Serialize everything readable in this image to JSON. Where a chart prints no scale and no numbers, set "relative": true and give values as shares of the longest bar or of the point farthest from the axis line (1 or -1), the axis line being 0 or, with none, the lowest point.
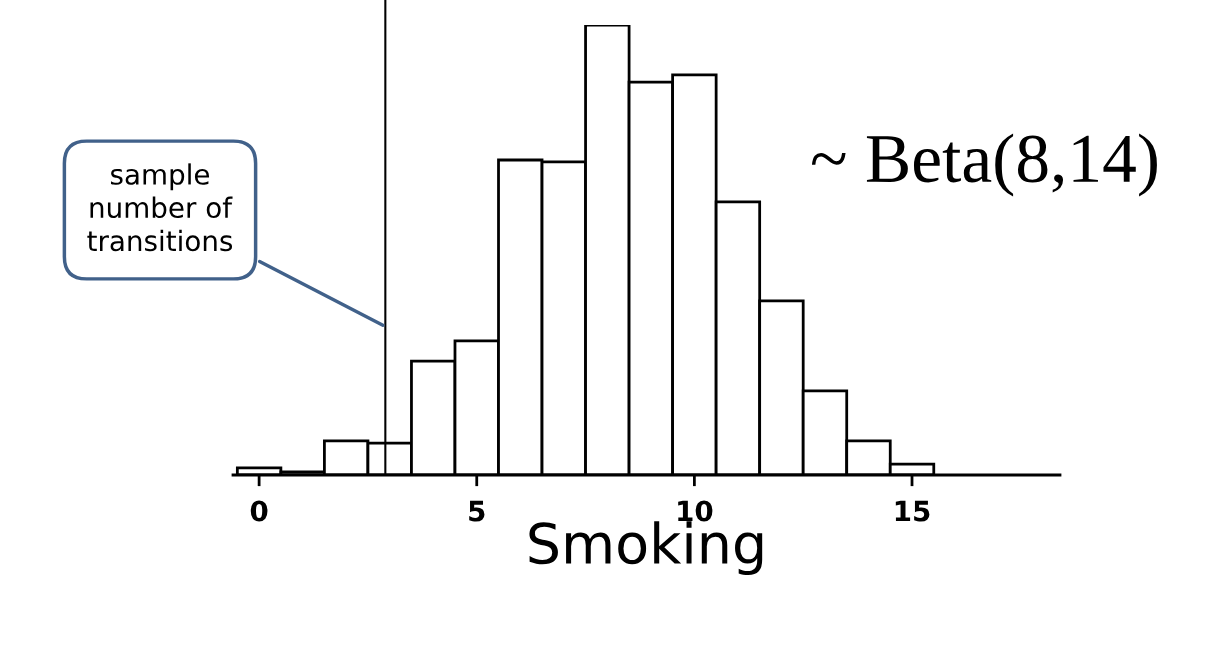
{
  "chart_data": {
    "type": "bar",
    "relative": true,
    "xlabel": "Smoking",
    "x": [
      0,
      1,
      2,
      3,
      4,
      5,
      6,
      7,
      8,
      9,
      10,
      11,
      12,
      13,
      14,
      15
    ],
    "values": [
      0.016,
      0.007,
      0.076,
      0.071,
      0.253,
      0.298,
      0.7,
      0.696,
      1,
      0.873,
      0.889,
      0.607,
      0.387,
      0.187,
      0.076,
      0.024
    ],
    "color": "#ffffff",
    "xlim": [
      -0.6,
      18.4
    ],
    "xticks": [
      0,
      5,
      10,
      15
    ],
    "ref_lines": [
      {
        "axis": "x",
        "value": 2.9,
        "color": "#000000"
      }
    ],
    "annotations": [
      {
        "text": "sample\nnumber of\ntransitions",
        "x": 2.9,
        "y": 0.33
      },
      "~ Beta(8,14)"
    ],
    "grid": false,
    "legend": false
  }
}
